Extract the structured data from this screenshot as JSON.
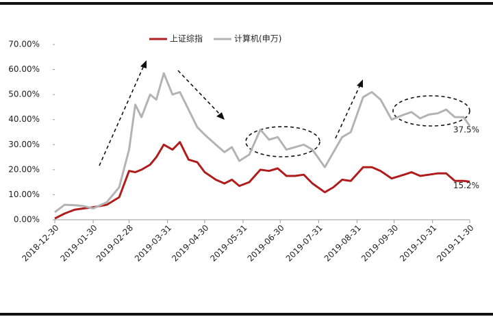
{
  "chart_data": {
    "type": "line",
    "x": [
      "2018-12-30",
      "2019-01-07",
      "2019-01-15",
      "2019-01-22",
      "2019-01-30",
      "2019-02-10",
      "2019-02-20",
      "2019-02-28",
      "2019-03-05",
      "2019-03-10",
      "2019-03-17",
      "2019-03-22",
      "2019-03-28",
      "2019-04-04",
      "2019-04-10",
      "2019-04-17",
      "2019-04-24",
      "2019-04-30",
      "2019-05-09",
      "2019-05-16",
      "2019-05-22",
      "2019-05-28",
      "2019-06-05",
      "2019-06-14",
      "2019-06-21",
      "2019-06-28",
      "2019-07-05",
      "2019-07-12",
      "2019-07-19",
      "2019-07-26",
      "2019-08-05",
      "2019-08-12",
      "2019-08-19",
      "2019-08-26",
      "2019-09-05",
      "2019-09-12",
      "2019-09-19",
      "2019-09-28",
      "2019-10-08",
      "2019-10-14",
      "2019-10-21",
      "2019-10-28",
      "2019-11-04",
      "2019-11-11",
      "2019-11-18",
      "2019-11-25",
      "2019-11-30"
    ],
    "series": [
      {
        "name": "上证综指",
        "color": "#b01c1c",
        "values": [
          0.5,
          2.5,
          4,
          4.5,
          5,
          6,
          9,
          19.5,
          19,
          20,
          22,
          25,
          30,
          28,
          31,
          24,
          23,
          19,
          16,
          14.5,
          16,
          13.5,
          15,
          20,
          19.5,
          20.5,
          17.5,
          17.5,
          18,
          14.5,
          11,
          13,
          16,
          15.5,
          21,
          21,
          19.5,
          16.5,
          18,
          19,
          17.5,
          18,
          18.5,
          18.5,
          15.5,
          15.5,
          15.2
        ],
        "value_labels": [
          null,
          null,
          null,
          null,
          null,
          null,
          null,
          null,
          null,
          null,
          null,
          null,
          null,
          null,
          null,
          null,
          null,
          null,
          null,
          null,
          null,
          null,
          null,
          null,
          null,
          null,
          null,
          null,
          null,
          null,
          null,
          null,
          null,
          null,
          null,
          null,
          null,
          null,
          null,
          null,
          null,
          null,
          null,
          null,
          null,
          null,
          "15.2%"
        ]
      },
      {
        "name": "计算机(申万)",
        "color": "#b3b3b3",
        "values": [
          3,
          6,
          5.8,
          5.5,
          4.5,
          7,
          13,
          28,
          46,
          41,
          50,
          48,
          58.5,
          50,
          51,
          44,
          37,
          34,
          30,
          27,
          29,
          23.5,
          26,
          36,
          32,
          33,
          28,
          29,
          30,
          28,
          21,
          27,
          33,
          35,
          49,
          51,
          48,
          40,
          42,
          43,
          40.5,
          42,
          42.5,
          44,
          41,
          41,
          37.5
        ],
        "value_labels": [
          null,
          null,
          null,
          null,
          null,
          null,
          null,
          null,
          null,
          null,
          null,
          null,
          null,
          null,
          null,
          null,
          null,
          null,
          null,
          null,
          null,
          null,
          null,
          null,
          null,
          null,
          null,
          null,
          null,
          null,
          null,
          null,
          null,
          null,
          null,
          null,
          null,
          null,
          null,
          null,
          null,
          null,
          null,
          null,
          null,
          null,
          "37.5%"
        ]
      }
    ],
    "xlim": [
      "2018-12-30",
      "2019-11-30"
    ],
    "xticks": [
      "2018-12-30",
      "2019-01-30",
      "2019-02-28",
      "2019-03-31",
      "2019-04-30",
      "2019-05-31",
      "2019-06-30",
      "2019-07-31",
      "2019-08-31",
      "2019-09-30",
      "2019-10-31",
      "2019-11-30"
    ],
    "ylim": [
      0,
      70
    ],
    "yticks": [
      {
        "value": 0,
        "label": "0.00%"
      },
      {
        "value": 10,
        "label": "10.00%"
      },
      {
        "value": 20,
        "label": "20.00%"
      },
      {
        "value": 30,
        "label": "30.00%"
      },
      {
        "value": 40,
        "label": "40.00%"
      },
      {
        "value": 50,
        "label": "50.00%"
      },
      {
        "value": 60,
        "label": "60.00%"
      },
      {
        "value": 70,
        "label": "70.00%"
      }
    ],
    "legend": "top"
  }
}
